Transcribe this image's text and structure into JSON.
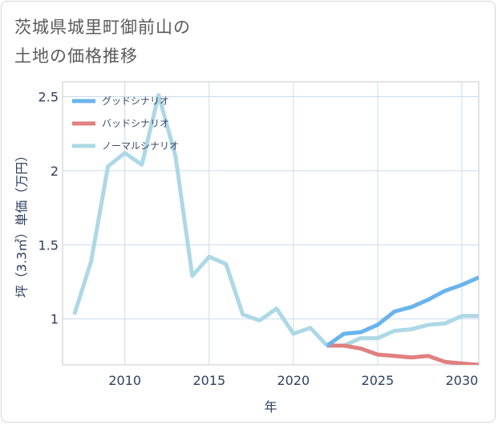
{
  "page": {
    "title_line1": "茨城県城里町御前山の",
    "title_line2": "土地の価格推移"
  },
  "chart_data": {
    "type": "line",
    "xlabel": "年",
    "ylabel": "坪（3.3㎡）単価（万円）",
    "xlim": [
      2006.3,
      2031
    ],
    "ylim": [
      0.69,
      2.6
    ],
    "x_ticks": [
      2010,
      2015,
      2020,
      2025,
      2030
    ],
    "y_ticks": [
      1,
      1.5,
      2,
      2.5
    ],
    "x_tick_labels": [
      "2010",
      "2015",
      "2020",
      "2025",
      "2030"
    ],
    "y_tick_labels": [
      "1",
      "1.5",
      "2",
      "2.5"
    ],
    "grid": true,
    "legend_position": "top-left",
    "series": [
      {
        "name": "ノーマルシナリオ",
        "color": "#add8e6",
        "x": [
          2007,
          2008,
          2009,
          2010,
          2011,
          2012,
          2013,
          2014,
          2015,
          2016,
          2017,
          2018,
          2019,
          2020,
          2021,
          2022,
          2023,
          2024,
          2025,
          2026,
          2027,
          2028,
          2029,
          2030,
          2031
        ],
        "y": [
          1.03,
          1.39,
          2.03,
          2.12,
          2.04,
          2.51,
          2.1,
          1.29,
          1.42,
          1.37,
          1.03,
          0.99,
          1.07,
          0.9,
          0.94,
          0.82,
          0.82,
          0.87,
          0.87,
          0.92,
          0.93,
          0.96,
          0.97,
          1.02,
          1.02
        ]
      },
      {
        "name": "バッドシナリオ",
        "color": "#e08080",
        "x": [
          2022,
          2023,
          2024,
          2025,
          2026,
          2027,
          2028,
          2029,
          2030,
          2031
        ],
        "y": [
          0.82,
          0.82,
          0.8,
          0.76,
          0.75,
          0.74,
          0.75,
          0.71,
          0.7,
          0.69
        ]
      },
      {
        "name": "グッドシナリオ",
        "color": "#6ab4ec",
        "x": [
          2022,
          2023,
          2024,
          2025,
          2026,
          2027,
          2028,
          2029,
          2030,
          2031
        ],
        "y": [
          0.82,
          0.9,
          0.91,
          0.96,
          1.05,
          1.08,
          1.13,
          1.19,
          1.23,
          1.28
        ]
      }
    ],
    "legend_order": [
      "グッドシナリオ",
      "バッドシナリオ",
      "ノーマルシナリオ"
    ]
  }
}
